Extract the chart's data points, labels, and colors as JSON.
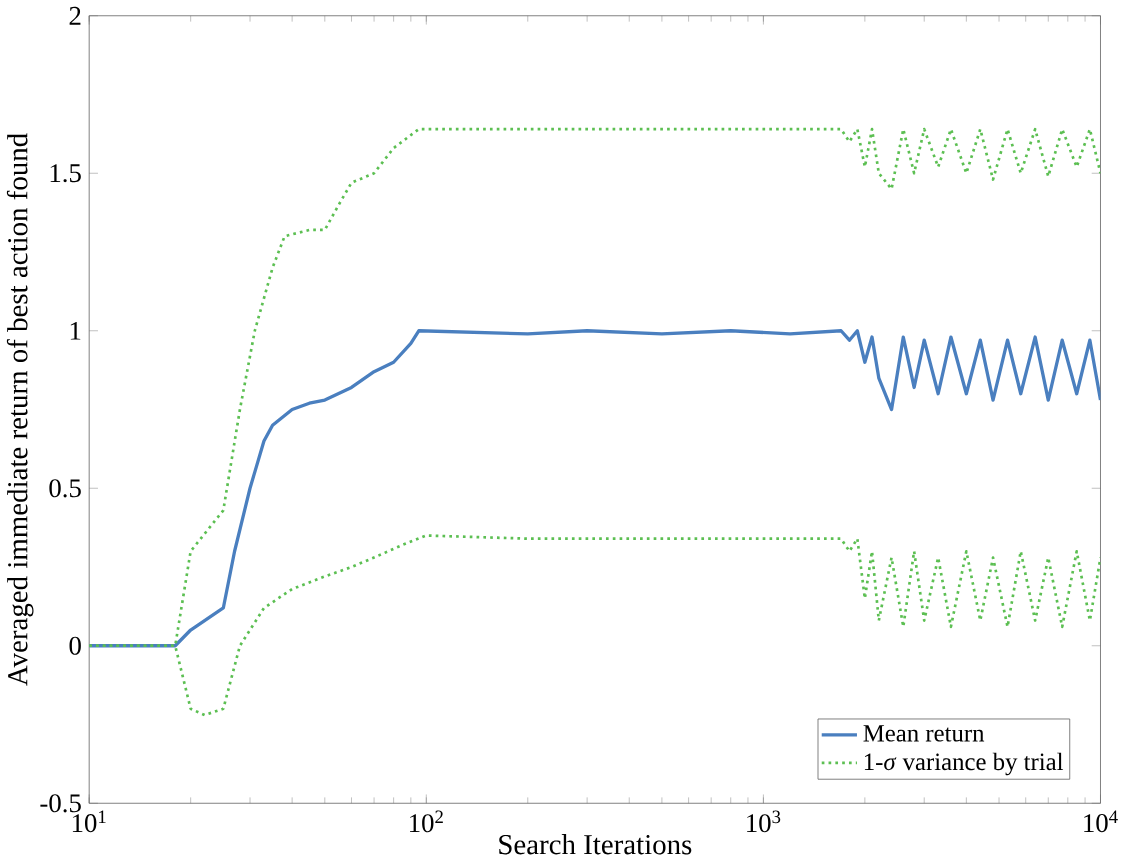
{
  "chart_data": {
    "type": "line",
    "xlabel": "Search Iterations",
    "ylabel": "Averaged immediate return of best action found",
    "log": "x",
    "xlim": [
      10,
      10000
    ],
    "ylim": [
      -0.5,
      2
    ],
    "xticks": [
      {
        "value": 10,
        "label": "10$^{1}$"
      },
      {
        "value": 100,
        "label": "10$^{2}$"
      },
      {
        "value": 1000,
        "label": "10$^{3}$"
      },
      {
        "value": 10000,
        "label": "10$^{4}$"
      }
    ],
    "yticks": [
      -0.5,
      0,
      0.5,
      1,
      1.5,
      2
    ],
    "grid": false,
    "legend": "bottom right",
    "marker": "none",
    "series": [
      {
        "name": "Mean return",
        "color": "#4a7fbf",
        "line_style": "solid",
        "x": [
          10,
          18,
          20,
          22,
          25,
          27,
          30,
          33,
          35,
          40,
          45,
          50,
          60,
          70,
          80,
          90,
          95,
          200,
          300,
          500,
          800,
          1200,
          1700,
          1800,
          1900,
          2000,
          2100,
          2200,
          2400,
          2600,
          2800,
          3000,
          3300,
          3600,
          4000,
          4400,
          4800,
          5300,
          5800,
          6400,
          7000,
          7700,
          8500,
          9300,
          10000
        ],
        "values": [
          0,
          0,
          0.05,
          0.08,
          0.12,
          0.3,
          0.5,
          0.65,
          0.7,
          0.75,
          0.77,
          0.78,
          0.82,
          0.87,
          0.9,
          0.96,
          1.0,
          0.99,
          1.0,
          0.99,
          1.0,
          0.99,
          1.0,
          0.97,
          1.0,
          0.9,
          0.98,
          0.85,
          0.75,
          0.98,
          0.82,
          0.97,
          0.8,
          0.98,
          0.8,
          0.97,
          0.78,
          0.97,
          0.8,
          0.98,
          0.78,
          0.97,
          0.8,
          0.97,
          0.78
        ]
      },
      {
        "name": "1-*σ* variance by trial",
        "color": "#5cbf52",
        "line_style": "dotted",
        "x": [
          10,
          18,
          20,
          25,
          28,
          31,
          35,
          38,
          45,
          50,
          55,
          60,
          70,
          80,
          95,
          200,
          500,
          1000,
          1700,
          1800,
          1900,
          2000,
          2100,
          2200,
          2400,
          2600,
          2800,
          3000,
          3300,
          3600,
          4000,
          4400,
          4800,
          5300,
          5800,
          6400,
          7000,
          7700,
          8500,
          9300,
          10000
        ],
        "values": [
          0,
          0,
          0.3,
          0.43,
          0.75,
          1.0,
          1.2,
          1.3,
          1.32,
          1.32,
          1.4,
          1.47,
          1.5,
          1.58,
          1.64,
          1.64,
          1.64,
          1.64,
          1.64,
          1.6,
          1.64,
          1.52,
          1.64,
          1.5,
          1.45,
          1.64,
          1.5,
          1.64,
          1.52,
          1.64,
          1.5,
          1.64,
          1.48,
          1.64,
          1.5,
          1.64,
          1.49,
          1.64,
          1.52,
          1.64,
          1.5
        ]
      },
      {
        "color": "#5cbf52",
        "line_style": "dotted",
        "x": [
          10,
          18,
          20,
          22,
          25,
          28,
          33,
          40,
          50,
          60,
          70,
          85,
          100,
          200,
          500,
          1000,
          1700,
          1800,
          1900,
          2000,
          2100,
          2200,
          2400,
          2600,
          2800,
          3000,
          3300,
          3600,
          4000,
          4400,
          4800,
          5300,
          5800,
          6400,
          7000,
          7700,
          8500,
          9300,
          10000
        ],
        "values": [
          0,
          0,
          -0.2,
          -0.22,
          -0.2,
          0,
          0.12,
          0.18,
          0.22,
          0.25,
          0.28,
          0.32,
          0.35,
          0.34,
          0.34,
          0.34,
          0.34,
          0.3,
          0.34,
          0.15,
          0.3,
          0.08,
          0.28,
          0.06,
          0.3,
          0.08,
          0.28,
          0.06,
          0.3,
          0.08,
          0.28,
          0.06,
          0.3,
          0.08,
          0.28,
          0.06,
          0.3,
          0.08,
          0.28
        ]
      }
    ]
  }
}
